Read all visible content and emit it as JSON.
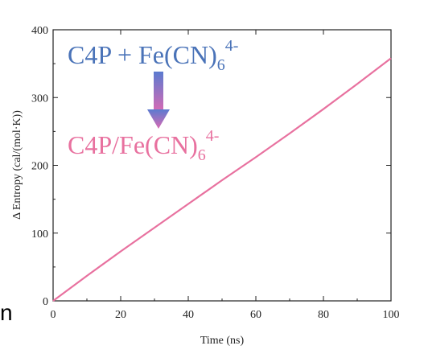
{
  "chart_data": {
    "type": "line",
    "xlabel": "Time (ns)",
    "ylabel": "Δ Entropy (cal/(mol·K))",
    "xlim": [
      0,
      100
    ],
    "ylim": [
      0,
      400
    ],
    "x_ticks": [
      "0",
      "20",
      "40",
      "60",
      "80",
      "100"
    ],
    "y_ticks": [
      "0",
      "100",
      "200",
      "300",
      "400"
    ],
    "grid": false,
    "series": [
      {
        "color": "#e8719f",
        "x": [
          0,
          10,
          20,
          30,
          40,
          50,
          60,
          70,
          80,
          90,
          100
        ],
        "y": [
          0,
          37,
          73,
          108,
          143,
          178,
          212,
          247,
          283,
          320,
          358
        ]
      }
    ],
    "annotations": {
      "reactant": {
        "parts": [
          "C4P + Fe(CN)",
          "6",
          "4-"
        ],
        "color": "#4a73b8"
      },
      "product": {
        "parts": [
          "C4P/Fe(CN)",
          "6",
          "4-"
        ],
        "color": "#e8719f"
      },
      "arrow_colors": [
        "#5b7bd0",
        "#d96ab4"
      ]
    }
  },
  "stray_text": "n"
}
